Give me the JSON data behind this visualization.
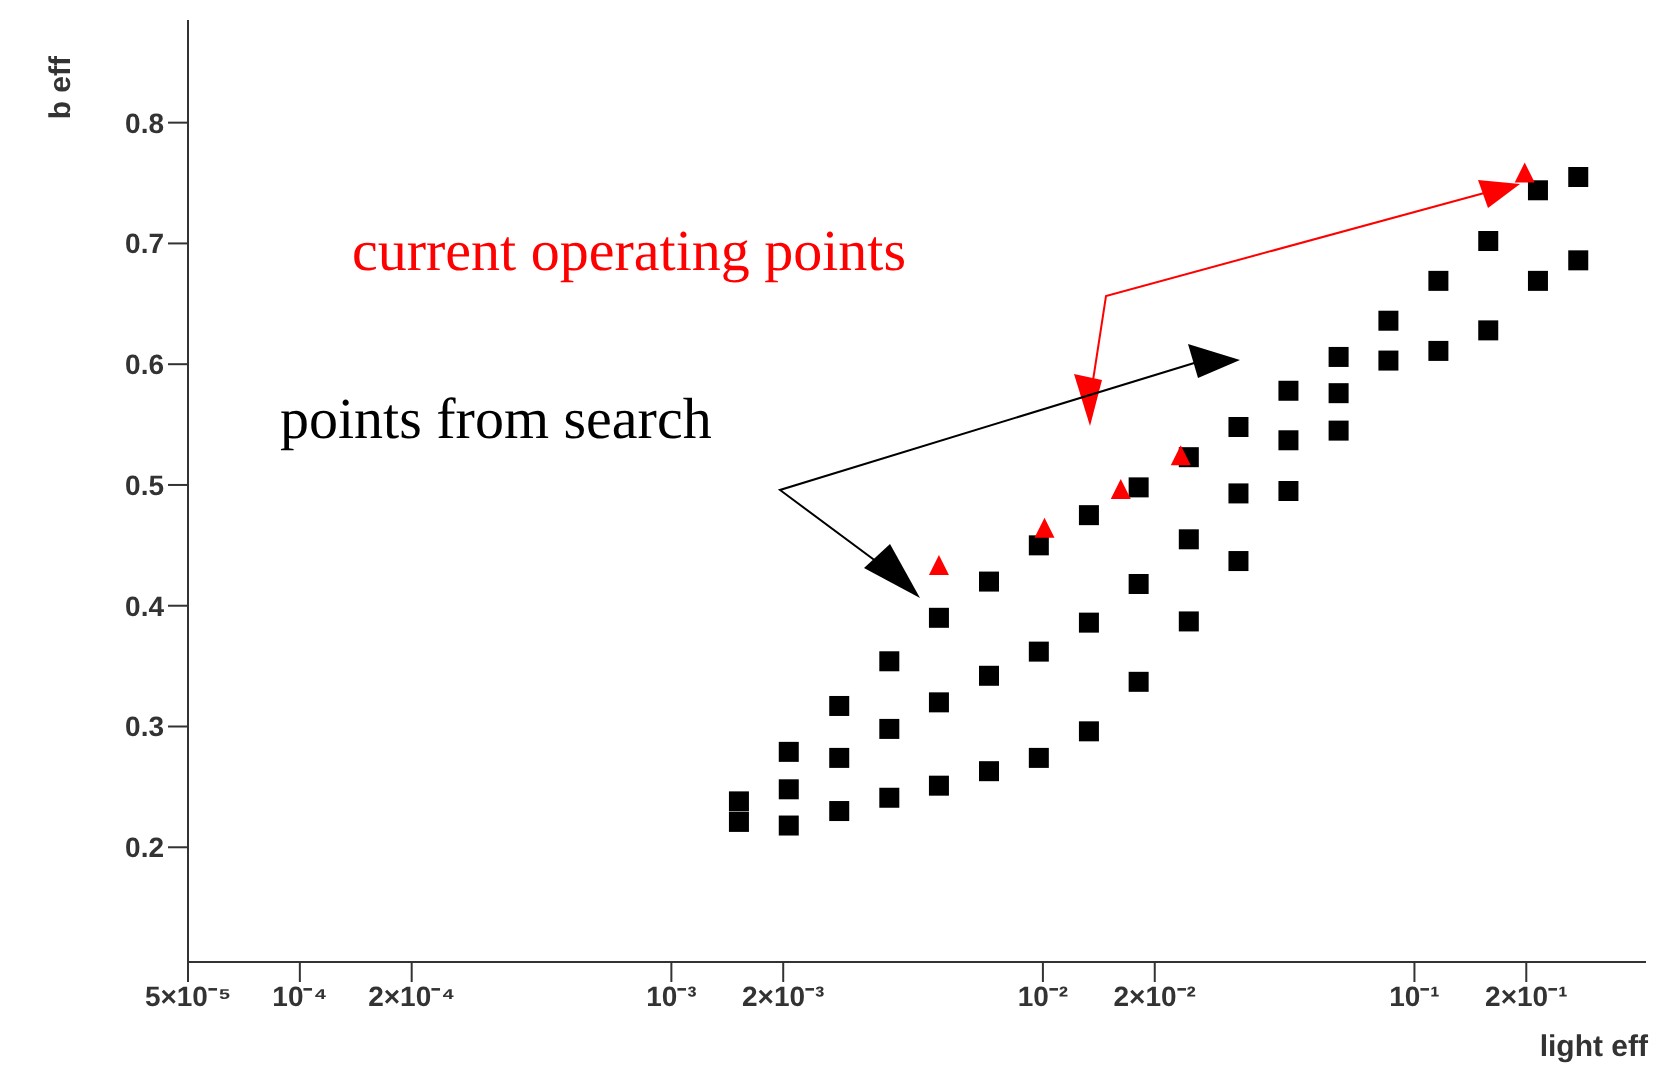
{
  "chart_data": {
    "type": "scatter",
    "xlabel": "light eff",
    "ylabel": "b eff",
    "log": "x",
    "xlim": [
      5e-05,
      0.42
    ],
    "ylim": [
      0.105,
      0.885
    ],
    "xticks": [
      {
        "value": 5e-05,
        "label": "5×10⁻⁵"
      },
      {
        "value": 0.0001,
        "label": "10⁻⁴"
      },
      {
        "value": 0.0002,
        "label": "2×10⁻⁴"
      },
      {
        "value": 0.001,
        "label": "10⁻³"
      },
      {
        "value": 0.002,
        "label": "2×10⁻³"
      },
      {
        "value": 0.01,
        "label": "10⁻²"
      },
      {
        "value": 0.02,
        "label": "2×10⁻²"
      },
      {
        "value": 0.1,
        "label": "10⁻¹"
      },
      {
        "value": 0.2,
        "label": "2×10⁻¹"
      }
    ],
    "yticks": [
      0.2,
      0.3,
      0.4,
      0.5,
      0.6,
      0.7,
      0.8
    ],
    "annotations": [
      "current operating points",
      "points from search"
    ],
    "series": [
      {
        "color": "#000000",
        "marker": "square",
        "x": [
          0.00152,
          0.00152,
          0.00207,
          0.00207,
          0.00207,
          0.00283,
          0.00283,
          0.00283,
          0.00386,
          0.00386,
          0.00386,
          0.00525,
          0.00525,
          0.00525,
          0.00716,
          0.00716,
          0.00716,
          0.00975,
          0.00975,
          0.00975,
          0.0133,
          0.0133,
          0.0133,
          0.0181,
          0.0181,
          0.0181,
          0.0247,
          0.0247,
          0.0247,
          0.0336,
          0.0336,
          0.0336,
          0.0458,
          0.0458,
          0.0458,
          0.0625,
          0.0625,
          0.0625,
          0.0851,
          0.0851,
          0.116,
          0.116,
          0.158,
          0.158,
          0.215,
          0.215,
          0.276,
          0.276
        ],
        "values": [
          0.238,
          0.221,
          0.279,
          0.248,
          0.218,
          0.317,
          0.274,
          0.23,
          0.354,
          0.298,
          0.241,
          0.39,
          0.32,
          0.251,
          0.42,
          0.342,
          0.263,
          0.45,
          0.362,
          0.274,
          0.475,
          0.386,
          0.296,
          0.498,
          0.418,
          0.337,
          0.523,
          0.455,
          0.387,
          0.548,
          0.493,
          0.437,
          0.578,
          0.537,
          0.495,
          0.606,
          0.576,
          0.545,
          0.636,
          0.603,
          0.669,
          0.611,
          0.702,
          0.628,
          0.744,
          0.669,
          0.755,
          0.686
        ]
      },
      {
        "color": "#ff0000",
        "marker": "triangle",
        "x": [
          0.00525,
          0.0101,
          0.0162,
          0.0235,
          0.198
        ],
        "values": [
          0.432,
          0.463,
          0.495,
          0.523,
          0.757
        ]
      }
    ]
  }
}
